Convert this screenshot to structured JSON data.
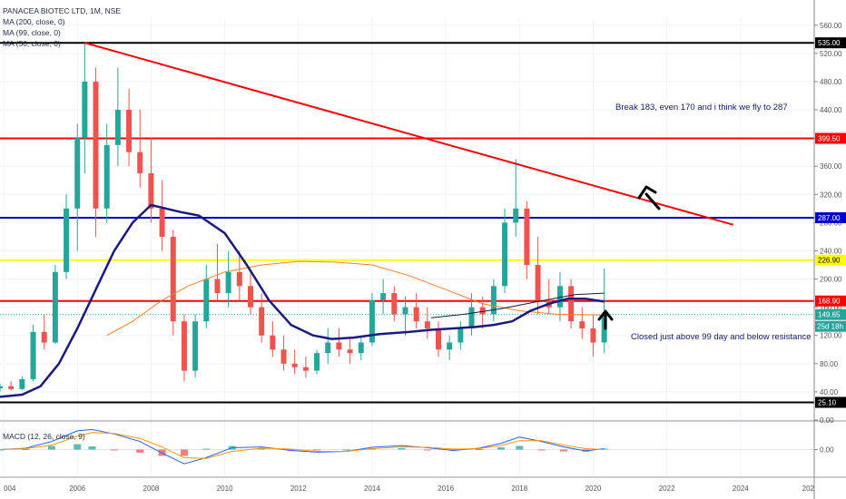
{
  "header": {
    "title": "PANACEA BIOTEC LTD, 1M, NSE",
    "indicators": [
      "MA (200, close, 0)",
      "MA (99, close, 0)",
      "MA (50, close, 0)"
    ],
    "macd_label": "MACD (12, 26, close, 9)"
  },
  "annotations": {
    "note_top": "Break 183, even 170 and i think we fly to 287",
    "note_bottom": "Closed just above 99 day and below resistance"
  },
  "colors": {
    "up": "#26a69a",
    "down": "#ef5350",
    "trend": "#ff0000",
    "support": "#000000",
    "blue": "#0000cc",
    "yellow": "#ffff00",
    "ma50": "#1a1a80",
    "ma99": "#ff7f27",
    "ma200": "#1a1a3a",
    "macd_line": "#2962ff",
    "signal_line": "#ff9800",
    "hist_up": "#26a69a",
    "hist_down": "#ef5350"
  },
  "chart_data": {
    "type": "candlestick",
    "title": "PANACEA BIOTEC LTD, 1M, NSE",
    "yaxis_ticks": [
      0,
      40,
      80,
      120,
      160,
      200,
      240,
      280,
      320,
      360,
      400,
      440,
      480,
      520,
      560
    ],
    "ylim": [
      0,
      570
    ],
    "xaxis_ticks": [
      "004",
      "2006",
      "2008",
      "2010",
      "2012",
      "2014",
      "2016",
      "2018",
      "2020",
      "2022",
      "2024",
      "202"
    ],
    "xlim": [
      2003.9,
      2026.0
    ],
    "price_levels": [
      {
        "value": 535.0,
        "label": "535.00",
        "color": "#000000",
        "style": "support"
      },
      {
        "value": 399.5,
        "label": "399.50",
        "color": "#ff0000",
        "style": "resistance"
      },
      {
        "value": 287.0,
        "label": "287.00",
        "color": "#0000cc",
        "style": "blue"
      },
      {
        "value": 226.9,
        "label": "226.90",
        "color": "#ffff00",
        "style": "yellow"
      },
      {
        "value": 168.9,
        "label": "168.90",
        "color": "#ff0000",
        "style": "resistance"
      },
      {
        "value": 25.1,
        "label": "25.10",
        "color": "#000000",
        "style": "support"
      }
    ],
    "current_price": {
      "value": 149.65,
      "label": "149.65",
      "countdown": "25d 18h"
    },
    "trendline": {
      "x": [
        2006.2,
        2023.8
      ],
      "y": [
        535,
        277
      ]
    },
    "candles": [
      {
        "t": 2003.9,
        "o": 45,
        "h": 52,
        "l": 40,
        "c": 48
      },
      {
        "t": 2004.2,
        "o": 48,
        "h": 55,
        "l": 42,
        "c": 44
      },
      {
        "t": 2004.5,
        "o": 44,
        "h": 62,
        "l": 42,
        "c": 58
      },
      {
        "t": 2004.8,
        "o": 58,
        "h": 135,
        "l": 55,
        "c": 125
      },
      {
        "t": 2005.1,
        "o": 125,
        "h": 150,
        "l": 100,
        "c": 110
      },
      {
        "t": 2005.4,
        "o": 110,
        "h": 220,
        "l": 108,
        "c": 210
      },
      {
        "t": 2005.7,
        "o": 210,
        "h": 320,
        "l": 200,
        "c": 300
      },
      {
        "t": 2006.0,
        "o": 300,
        "h": 420,
        "l": 240,
        "c": 400
      },
      {
        "t": 2006.2,
        "o": 400,
        "h": 535,
        "l": 350,
        "c": 480
      },
      {
        "t": 2006.5,
        "o": 480,
        "h": 500,
        "l": 260,
        "c": 300
      },
      {
        "t": 2006.8,
        "o": 300,
        "h": 420,
        "l": 280,
        "c": 390
      },
      {
        "t": 2007.1,
        "o": 390,
        "h": 500,
        "l": 360,
        "c": 440
      },
      {
        "t": 2007.4,
        "o": 440,
        "h": 470,
        "l": 360,
        "c": 380
      },
      {
        "t": 2007.7,
        "o": 380,
        "h": 440,
        "l": 330,
        "c": 350
      },
      {
        "t": 2008.0,
        "o": 350,
        "h": 400,
        "l": 280,
        "c": 300
      },
      {
        "t": 2008.3,
        "o": 300,
        "h": 340,
        "l": 240,
        "c": 260
      },
      {
        "t": 2008.6,
        "o": 260,
        "h": 270,
        "l": 120,
        "c": 140
      },
      {
        "t": 2008.9,
        "o": 140,
        "h": 150,
        "l": 55,
        "c": 70
      },
      {
        "t": 2009.2,
        "o": 70,
        "h": 150,
        "l": 60,
        "c": 140
      },
      {
        "t": 2009.5,
        "o": 140,
        "h": 220,
        "l": 130,
        "c": 200
      },
      {
        "t": 2009.8,
        "o": 200,
        "h": 250,
        "l": 170,
        "c": 180
      },
      {
        "t": 2010.1,
        "o": 180,
        "h": 240,
        "l": 160,
        "c": 210
      },
      {
        "t": 2010.4,
        "o": 210,
        "h": 240,
        "l": 170,
        "c": 190
      },
      {
        "t": 2010.7,
        "o": 190,
        "h": 210,
        "l": 150,
        "c": 160
      },
      {
        "t": 2011.0,
        "o": 160,
        "h": 180,
        "l": 110,
        "c": 120
      },
      {
        "t": 2011.3,
        "o": 120,
        "h": 140,
        "l": 90,
        "c": 100
      },
      {
        "t": 2011.6,
        "o": 100,
        "h": 120,
        "l": 70,
        "c": 80
      },
      {
        "t": 2011.9,
        "o": 80,
        "h": 100,
        "l": 65,
        "c": 75
      },
      {
        "t": 2012.2,
        "o": 75,
        "h": 90,
        "l": 60,
        "c": 70
      },
      {
        "t": 2012.5,
        "o": 70,
        "h": 100,
        "l": 65,
        "c": 95
      },
      {
        "t": 2012.8,
        "o": 95,
        "h": 130,
        "l": 80,
        "c": 110
      },
      {
        "t": 2013.1,
        "o": 110,
        "h": 130,
        "l": 90,
        "c": 100
      },
      {
        "t": 2013.4,
        "o": 100,
        "h": 115,
        "l": 80,
        "c": 95
      },
      {
        "t": 2013.7,
        "o": 95,
        "h": 120,
        "l": 85,
        "c": 110
      },
      {
        "t": 2014.0,
        "o": 110,
        "h": 180,
        "l": 105,
        "c": 170
      },
      {
        "t": 2014.3,
        "o": 170,
        "h": 200,
        "l": 150,
        "c": 180
      },
      {
        "t": 2014.6,
        "o": 180,
        "h": 190,
        "l": 140,
        "c": 150
      },
      {
        "t": 2014.9,
        "o": 150,
        "h": 175,
        "l": 120,
        "c": 160
      },
      {
        "t": 2015.2,
        "o": 160,
        "h": 180,
        "l": 130,
        "c": 140
      },
      {
        "t": 2015.5,
        "o": 140,
        "h": 160,
        "l": 115,
        "c": 130
      },
      {
        "t": 2015.8,
        "o": 130,
        "h": 140,
        "l": 90,
        "c": 100
      },
      {
        "t": 2016.1,
        "o": 100,
        "h": 120,
        "l": 85,
        "c": 110
      },
      {
        "t": 2016.4,
        "o": 110,
        "h": 140,
        "l": 100,
        "c": 130
      },
      {
        "t": 2016.7,
        "o": 130,
        "h": 180,
        "l": 120,
        "c": 160
      },
      {
        "t": 2017.0,
        "o": 160,
        "h": 175,
        "l": 130,
        "c": 150
      },
      {
        "t": 2017.3,
        "o": 150,
        "h": 200,
        "l": 140,
        "c": 190
      },
      {
        "t": 2017.6,
        "o": 190,
        "h": 300,
        "l": 180,
        "c": 280
      },
      {
        "t": 2017.9,
        "o": 280,
        "h": 370,
        "l": 260,
        "c": 300
      },
      {
        "t": 2018.2,
        "o": 300,
        "h": 310,
        "l": 200,
        "c": 220
      },
      {
        "t": 2018.5,
        "o": 220,
        "h": 260,
        "l": 150,
        "c": 170
      },
      {
        "t": 2018.8,
        "o": 170,
        "h": 200,
        "l": 150,
        "c": 160
      },
      {
        "t": 2019.1,
        "o": 160,
        "h": 210,
        "l": 140,
        "c": 190
      },
      {
        "t": 2019.4,
        "o": 190,
        "h": 200,
        "l": 130,
        "c": 140
      },
      {
        "t": 2019.7,
        "o": 140,
        "h": 160,
        "l": 115,
        "c": 130
      },
      {
        "t": 2020.0,
        "o": 130,
        "h": 150,
        "l": 90,
        "c": 110
      },
      {
        "t": 2020.3,
        "o": 110,
        "h": 215,
        "l": 95,
        "c": 150
      }
    ],
    "ma50": {
      "t": [
        2003.9,
        2004.5,
        2005.0,
        2005.5,
        2006.0,
        2006.5,
        2007.0,
        2007.5,
        2008.0,
        2008.4,
        2008.8,
        2009.3,
        2010.0,
        2010.6,
        2011.2,
        2011.8,
        2012.4,
        2012.9,
        2013.5,
        2014.2,
        2015.0,
        2015.6,
        2016.2,
        2016.8,
        2017.3,
        2017.8,
        2018.3,
        2018.8,
        2019.3,
        2019.8,
        2020.3
      ],
      "y": [
        33,
        36,
        48,
        80,
        130,
        185,
        240,
        280,
        305,
        300,
        295,
        290,
        265,
        220,
        170,
        135,
        120,
        115,
        117,
        122,
        125,
        128,
        130,
        132,
        135,
        140,
        155,
        165,
        172,
        172,
        168
      ]
    },
    "ma99": {
      "t": [
        2006.8,
        2007.5,
        2008.3,
        2009.0,
        2010.0,
        2011.0,
        2012.0,
        2013.0,
        2014.0,
        2015.0,
        2016.0,
        2017.0,
        2018.0,
        2019.0,
        2020.3
      ],
      "y": [
        120,
        140,
        170,
        190,
        210,
        220,
        225,
        224,
        220,
        205,
        185,
        165,
        155,
        150,
        149
      ]
    },
    "ma200": {
      "t": [
        2015.6,
        2016.5,
        2017.5,
        2018.5,
        2019.5,
        2020.3
      ],
      "y": [
        145,
        150,
        158,
        168,
        178,
        180
      ]
    },
    "macd": {
      "ylim": [
        -60,
        60
      ],
      "ticks": [
        0
      ],
      "t": [
        2003.9,
        2004.6,
        2005.3,
        2006.0,
        2006.4,
        2007.0,
        2007.7,
        2008.3,
        2008.9,
        2009.5,
        2010.2,
        2011.0,
        2011.8,
        2012.5,
        2013.3,
        2014.0,
        2014.8,
        2015.5,
        2016.2,
        2016.9,
        2017.5,
        2018.0,
        2018.6,
        2019.2,
        2019.8,
        2020.3
      ],
      "macd": [
        0,
        3,
        18,
        42,
        45,
        35,
        18,
        -8,
        -32,
        -18,
        4,
        6,
        -2,
        -6,
        -4,
        5,
        9,
        4,
        -2,
        3,
        14,
        28,
        18,
        6,
        -3,
        2
      ],
      "signal": [
        0,
        2,
        10,
        30,
        38,
        36,
        25,
        6,
        -18,
        -20,
        -4,
        3,
        1,
        -4,
        -4,
        2,
        6,
        5,
        1,
        2,
        9,
        20,
        20,
        10,
        2,
        0
      ]
    }
  }
}
